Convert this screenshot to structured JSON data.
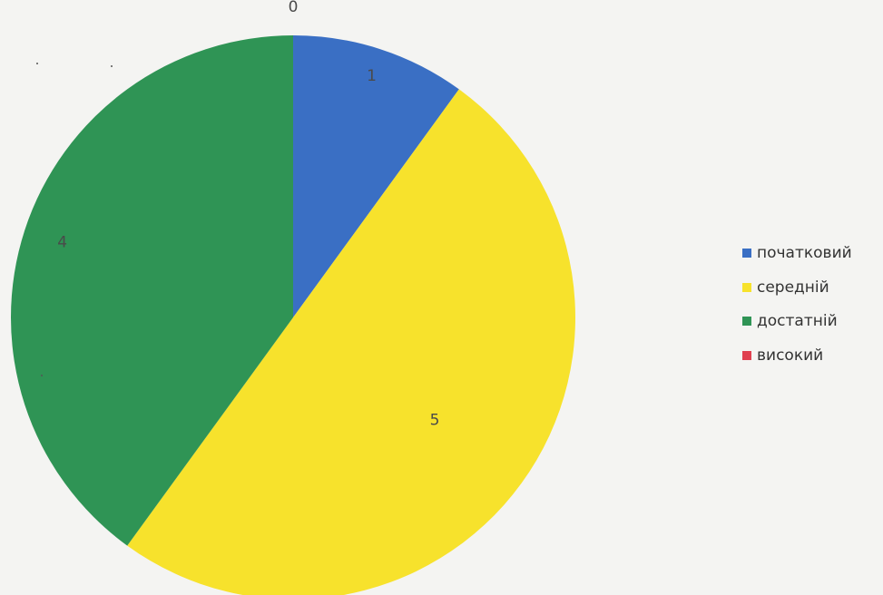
{
  "chart_data": {
    "type": "pie",
    "title": "",
    "categories": [
      "початковий",
      "середній",
      "достатній",
      "високий"
    ],
    "values": [
      1,
      5,
      4,
      0
    ],
    "colors": [
      "#3a6fc4",
      "#f7e22c",
      "#2f9455",
      "#e04050"
    ],
    "start_angle": "top",
    "direction": "clockwise",
    "data_labels": [
      "1",
      "5",
      "4",
      "0"
    ],
    "legend_position": "right"
  }
}
